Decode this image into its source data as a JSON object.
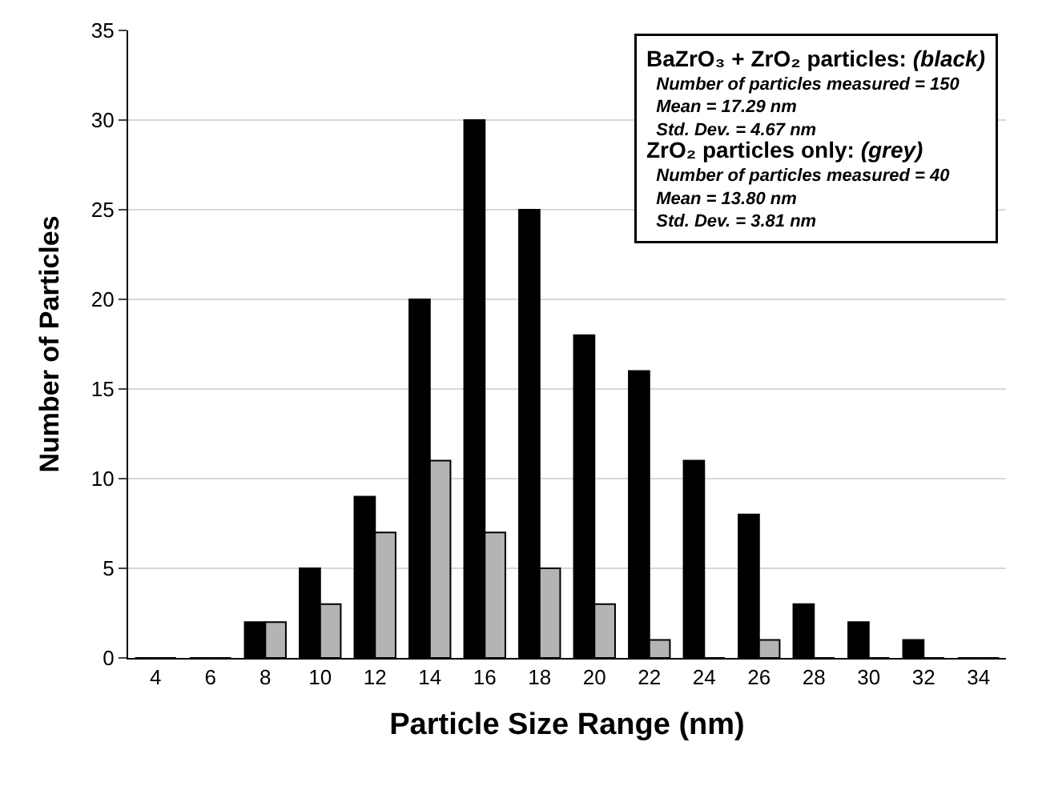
{
  "chart_data": {
    "type": "bar",
    "xlabel": "Particle Size Range (nm)",
    "ylabel": "Number of Particles",
    "categories": [
      "4",
      "6",
      "8",
      "10",
      "12",
      "14",
      "16",
      "18",
      "20",
      "22",
      "24",
      "26",
      "28",
      "30",
      "32",
      "34"
    ],
    "series": [
      {
        "color": "#000000",
        "values": [
          0,
          0,
          2,
          5,
          9,
          20,
          30,
          25,
          18,
          16,
          11,
          8,
          3,
          2,
          1,
          0
        ]
      },
      {
        "color": "#b4b4b4",
        "values": [
          0,
          0,
          2,
          3,
          7,
          11,
          7,
          5,
          3,
          1,
          0,
          1,
          0,
          0,
          0,
          0
        ]
      }
    ],
    "ylim": [
      0,
      35
    ],
    "yticks": [
      0,
      5,
      10,
      15,
      20,
      25,
      30,
      35
    ],
    "grid": "y",
    "annotations": [
      "BaZrO₃ + ZrO₂ particles: (black)",
      "Number of particles measured = 150",
      "Mean = 17.29 nm",
      "Std. Dev. = 4.67 nm",
      "ZrO₂ particles only: (grey)",
      "Number of particles measured = 40",
      "Mean = 13.80 nm",
      "Std. Dev. = 3.81 nm"
    ]
  }
}
